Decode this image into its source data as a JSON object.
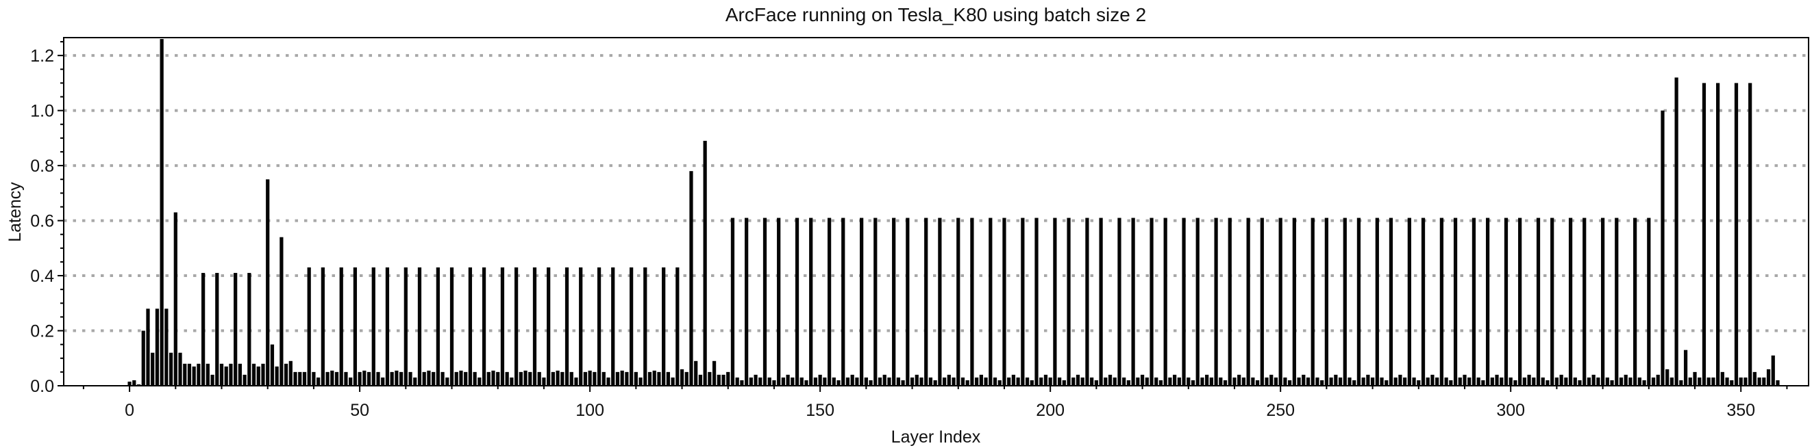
{
  "figure": {
    "title": "ArcFace running on Tesla_K80 using batch size 2",
    "xlabel": "Layer Index",
    "ylabel": "Latency"
  },
  "chart_data": {
    "type": "bar",
    "title": "ArcFace running on Tesla_K80 using batch size 2",
    "xlabel": "Layer Index",
    "ylabel": "Latency",
    "x_start": 0,
    "x_step": 1,
    "num_bars": 359,
    "xlim": [
      -14.3,
      364.7
    ],
    "ylim": [
      0,
      1.265
    ],
    "xticks": [
      0,
      50,
      100,
      150,
      200,
      250,
      300,
      350
    ],
    "yticks": [
      0.0,
      0.2,
      0.4,
      0.6,
      0.8,
      1.0,
      1.2
    ],
    "x_minor_tick_step": 10,
    "y_minor_tick_step": 0.05,
    "grid": {
      "axis": "y",
      "style": "dotted",
      "color": "#a8a8a8",
      "at": [
        0.2,
        0.4,
        0.6,
        0.8,
        1.0,
        1.2
      ]
    },
    "bar_color": "#050505",
    "background": "#ffffff",
    "legend": null,
    "max_value": 1.26,
    "values_rle": [
      {
        "repeat": 1,
        "seq": [
          0.015,
          0.02,
          0.005,
          0.2,
          0.28,
          0.12,
          0.28,
          1.26,
          0.28,
          0.12,
          0.63,
          0.12,
          0.08,
          0.08,
          0.07,
          0.08,
          0.41,
          0.08,
          0.04,
          0.41,
          0.08,
          0.07,
          0.08,
          0.41,
          0.08,
          0.04,
          0.41,
          0.08,
          0.07,
          0.08,
          0.75,
          0.15,
          0.07,
          0.54,
          0.08,
          0.09,
          0.05,
          0.05,
          0.05
        ]
      },
      {
        "repeat": 11,
        "seq": [
          0.43,
          0.05,
          0.03,
          0.43,
          0.05,
          0.055,
          0.05
        ]
      },
      {
        "repeat": 1,
        "seq": [
          0.43,
          0.05,
          0.03,
          0.43
        ]
      },
      {
        "repeat": 1,
        "seq": [
          0.06,
          0.05,
          0.78,
          0.09,
          0.04,
          0.89,
          0.05,
          0.09,
          0.04,
          0.04,
          0.05
        ]
      },
      {
        "repeat": 28,
        "seq": [
          0.61,
          0.03,
          0.02,
          0.61,
          0.03,
          0.04,
          0.03
        ]
      },
      {
        "repeat": 1,
        "seq": [
          0.61,
          0.03,
          0.02,
          0.61
        ]
      },
      {
        "repeat": 1,
        "seq": [
          0.03,
          0.04,
          1.0,
          0.06,
          0.03,
          1.12,
          0.02,
          0.13,
          0.03,
          0.05,
          0.03,
          1.1,
          0.03,
          0.03,
          1.1,
          0.05,
          0.03,
          0.02,
          1.1,
          0.03,
          0.03,
          1.1,
          0.05,
          0.03,
          0.03,
          0.06,
          0.11,
          0.02
        ]
      }
    ]
  }
}
